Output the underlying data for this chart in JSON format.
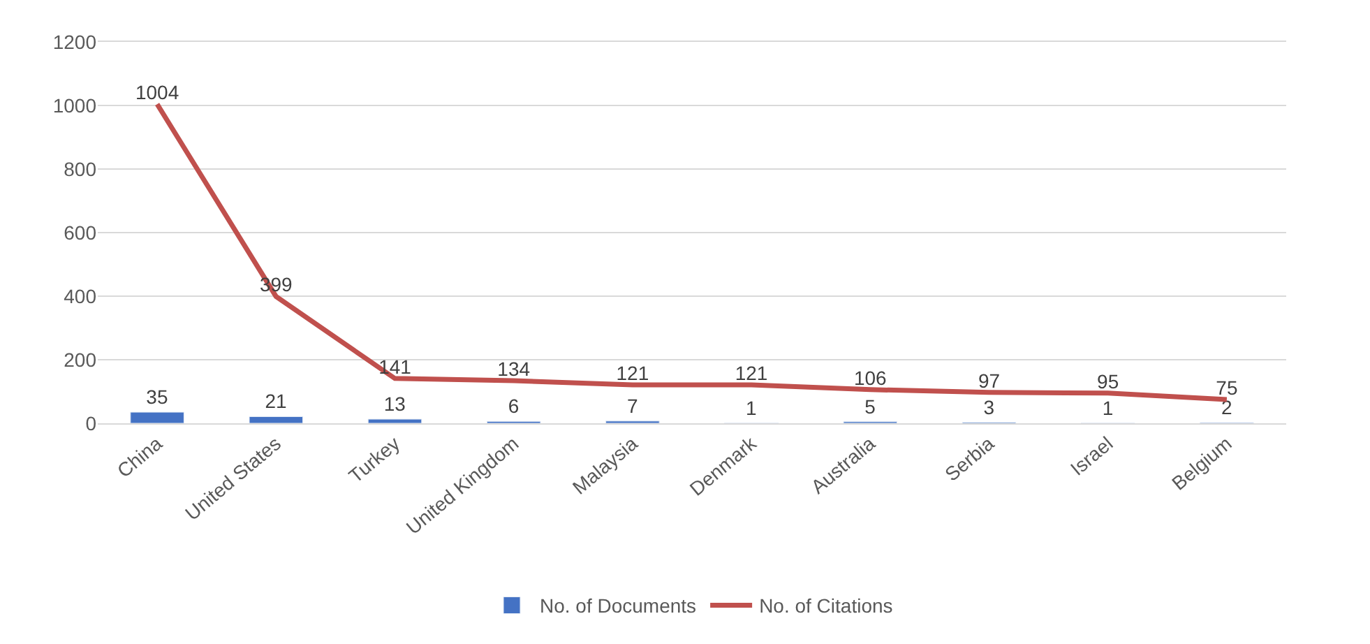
{
  "chart_data": {
    "type": "bar",
    "categories": [
      "China",
      "United States",
      "Turkey",
      "United Kingdom",
      "Malaysia",
      "Denmark",
      "Australia",
      "Serbia",
      "Israel",
      "Belgium"
    ],
    "series": [
      {
        "name": "No. of Documents",
        "color": "#4472c4",
        "values": [
          35,
          21,
          13,
          6,
          7,
          1,
          5,
          3,
          1,
          2
        ]
      },
      {
        "name": "No. of Citations",
        "type": "line",
        "color": "#c0504d",
        "values": [
          1004,
          399,
          141,
          134,
          121,
          121,
          106,
          97,
          95,
          75
        ]
      }
    ],
    "ylim": [
      0,
      1200
    ],
    "yticks": [
      0,
      200,
      400,
      600,
      800,
      1000,
      1200
    ],
    "data_labels": true,
    "grid": "y",
    "legend": "bottom",
    "marker": "none",
    "line_style": "solid"
  }
}
